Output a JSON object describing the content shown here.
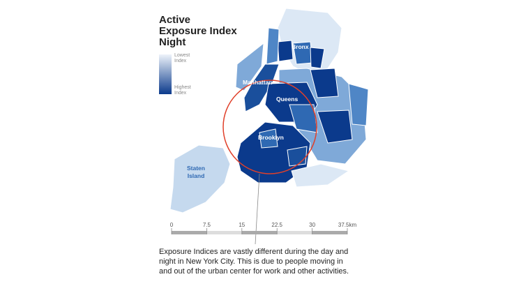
{
  "title_lines": [
    "Active",
    "Exposure Index",
    "Night"
  ],
  "legend": {
    "low": [
      "Lowest",
      "Index"
    ],
    "high": [
      "Highest",
      "Index"
    ]
  },
  "boroughs": [
    "Bronx",
    "Manhattan",
    "Queens",
    "Brooklyn",
    [
      "Staten",
      "Island"
    ]
  ],
  "scale": {
    "xlim": [
      0,
      37.5
    ],
    "ticks": [
      0,
      7.5,
      15,
      22.5,
      30,
      {
        "value": 37.5,
        "label": "37.5km"
      }
    ]
  },
  "caption_lines": [
    "Exposure Indices are vastly different during the day and",
    "night in New York City. This is due to people moving in",
    "and out of the urban center for work and other activities."
  ]
}
